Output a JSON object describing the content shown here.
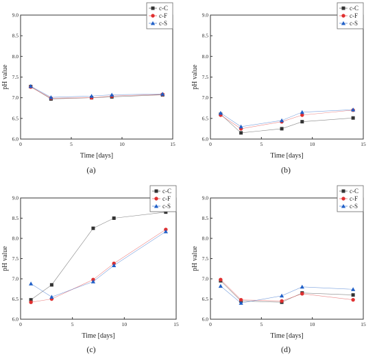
{
  "chart_data": [
    {
      "type": "line",
      "panel": "(a)",
      "xlabel": "Time [days]",
      "ylabel": "pH value",
      "xlim": [
        0,
        15
      ],
      "ylim": [
        6.0,
        9.0
      ],
      "xticks": [
        "0",
        "5",
        "10",
        "15"
      ],
      "yticks": [
        "6.0",
        "6.5",
        "7.0",
        "7.5",
        "8.0",
        "8.5",
        "9.0"
      ],
      "legend_position": "top-right",
      "series": [
        {
          "name": "c-C",
          "color": "#333333",
          "marker": "square",
          "x": [
            1,
            3,
            7,
            9,
            14
          ],
          "y": [
            7.27,
            6.97,
            7.0,
            7.02,
            7.07
          ]
        },
        {
          "name": "c-F",
          "color": "#e03030",
          "marker": "circle",
          "x": [
            1,
            3,
            7,
            9,
            14
          ],
          "y": [
            7.26,
            6.99,
            7.0,
            7.04,
            7.08
          ]
        },
        {
          "name": "c-S",
          "color": "#2060c8",
          "marker": "triangle",
          "x": [
            1,
            3,
            7,
            9,
            14
          ],
          "y": [
            7.28,
            7.01,
            7.04,
            7.07,
            7.09
          ]
        }
      ]
    },
    {
      "type": "line",
      "panel": "(b)",
      "xlabel": "Time [days]",
      "ylabel": "pH value",
      "xlim": [
        0,
        15
      ],
      "ylim": [
        6.0,
        9.0
      ],
      "xticks": [
        "0",
        "5",
        "10",
        "15"
      ],
      "yticks": [
        "6.0",
        "6.5",
        "7.0",
        "7.5",
        "8.0",
        "8.5",
        "9.0"
      ],
      "legend_position": "top-right",
      "series": [
        {
          "name": "c-C",
          "color": "#333333",
          "marker": "square",
          "x": [
            1,
            3,
            7,
            9,
            14
          ],
          "y": [
            6.6,
            6.15,
            6.25,
            6.42,
            6.51
          ]
        },
        {
          "name": "c-F",
          "color": "#e03030",
          "marker": "circle",
          "x": [
            1,
            3,
            7,
            9,
            14
          ],
          "y": [
            6.58,
            6.25,
            6.42,
            6.58,
            6.7
          ]
        },
        {
          "name": "c-S",
          "color": "#2060c8",
          "marker": "triangle",
          "x": [
            1,
            3,
            7,
            9,
            14
          ],
          "y": [
            6.63,
            6.3,
            6.45,
            6.65,
            6.71
          ]
        }
      ]
    },
    {
      "type": "line",
      "panel": "(c)",
      "xlabel": "Time [days]",
      "ylabel": "pH value",
      "xlim": [
        0,
        15
      ],
      "ylim": [
        6.0,
        9.0
      ],
      "xticks": [
        "0",
        "5",
        "10",
        "15"
      ],
      "yticks": [
        "6.0",
        "6.5",
        "7.0",
        "7.5",
        "8.0",
        "8.5",
        "9.0"
      ],
      "legend_position": "top-right",
      "series": [
        {
          "name": "c-C",
          "color": "#333333",
          "marker": "square",
          "x": [
            1,
            3,
            7,
            9,
            14
          ],
          "y": [
            6.48,
            6.85,
            8.25,
            8.5,
            8.65
          ]
        },
        {
          "name": "c-F",
          "color": "#e03030",
          "marker": "circle",
          "x": [
            1,
            3,
            7,
            9,
            14
          ],
          "y": [
            6.42,
            6.5,
            6.98,
            7.38,
            8.22
          ]
        },
        {
          "name": "c-S",
          "color": "#2060c8",
          "marker": "triangle",
          "x": [
            1,
            3,
            7,
            9,
            14
          ],
          "y": [
            6.88,
            6.55,
            6.93,
            7.33,
            8.17
          ]
        }
      ]
    },
    {
      "type": "line",
      "panel": "(d)",
      "xlabel": "Time [days]",
      "ylabel": "pH value",
      "xlim": [
        0,
        15
      ],
      "ylim": [
        6.0,
        9.0
      ],
      "xticks": [
        "0",
        "5",
        "10",
        "15"
      ],
      "yticks": [
        "6.0",
        "6.5",
        "7.0",
        "7.5",
        "8.0",
        "8.5",
        "9.0"
      ],
      "legend_position": "top-right",
      "series": [
        {
          "name": "c-C",
          "color": "#333333",
          "marker": "square",
          "x": [
            1,
            3,
            7,
            9,
            14
          ],
          "y": [
            6.95,
            6.45,
            6.42,
            6.65,
            6.6
          ]
        },
        {
          "name": "c-F",
          "color": "#e03030",
          "marker": "circle",
          "x": [
            1,
            3,
            7,
            9,
            14
          ],
          "y": [
            6.98,
            6.48,
            6.45,
            6.63,
            6.48
          ]
        },
        {
          "name": "c-S",
          "color": "#2060c8",
          "marker": "triangle",
          "x": [
            1,
            3,
            7,
            9,
            14
          ],
          "y": [
            6.82,
            6.4,
            6.58,
            6.8,
            6.74
          ]
        }
      ]
    }
  ]
}
